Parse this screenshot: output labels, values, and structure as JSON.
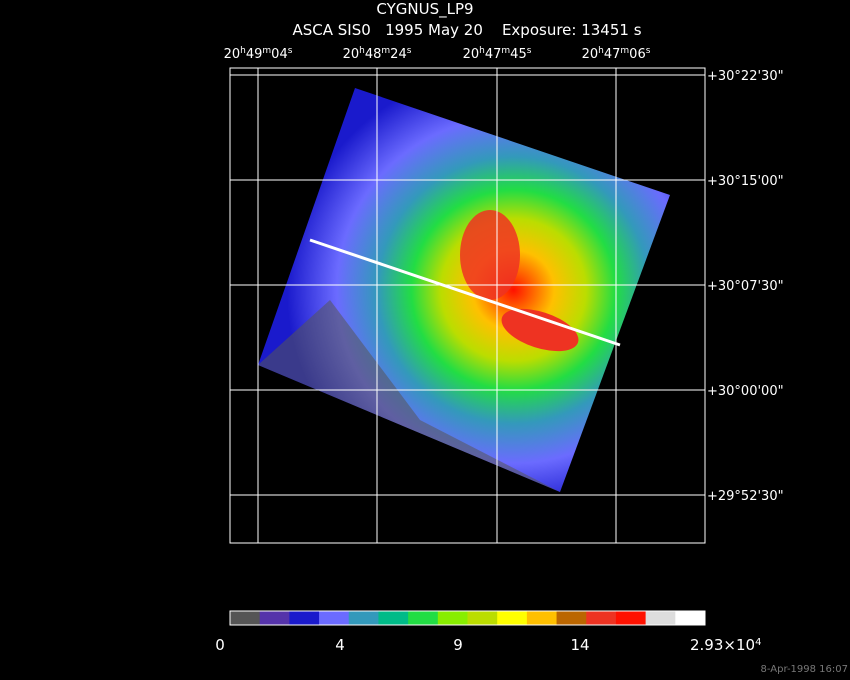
{
  "header": {
    "title": "CYGNUS_LP9",
    "subtitle": "ASCA SIS0   1995 May 20    Exposure: 13451 s"
  },
  "ra_labels": [
    [
      "20",
      "h",
      "49",
      "m",
      "04",
      "s"
    ],
    [
      "20",
      "h",
      "48",
      "m",
      "24",
      "s"
    ],
    [
      "20",
      "h",
      "47",
      "m",
      "45",
      "s"
    ],
    [
      "20",
      "h",
      "47",
      "m",
      "06",
      "s"
    ]
  ],
  "dec_labels": [
    "+30°22'30\"",
    "+30°15'00\"",
    "+30°07'30\"",
    "+30°00'00\"",
    "+29°52'30\""
  ],
  "colorbar": {
    "colors": [
      "#555555",
      "#5533aa",
      "#1a1acc",
      "#6b6bff",
      "#3399bb",
      "#00bb88",
      "#22dd44",
      "#88ee00",
      "#bbdd00",
      "#ffff00",
      "#ffc000",
      "#bb6600",
      "#ee3322",
      "#ff1100",
      "#dddddd",
      "#ffffff"
    ],
    "tick_labels": [
      "0",
      "4",
      "9",
      "14"
    ],
    "max_label": [
      "2.93×10",
      "4"
    ]
  },
  "timestamp": "8-Apr-1998 16:07"
}
